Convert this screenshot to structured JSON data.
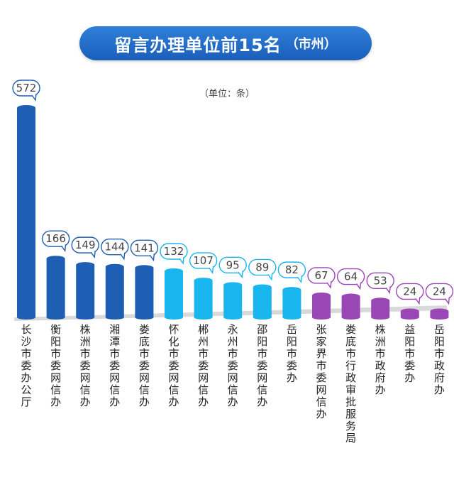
{
  "title": {
    "main": "留言办理单位前15名",
    "sub": "（市州）"
  },
  "unit_note": "（单位：条）",
  "colors": {
    "title_bg": "#1f68c4",
    "group1": "#1f5fb3",
    "group2": "#19b5ef",
    "group3": "#9a47b6",
    "floor": "#d9d9d9"
  },
  "chart_data": {
    "type": "bar",
    "title": "留言办理单位前15名（市州）",
    "ylabel": "（单位：条）",
    "categories": [
      "长沙市委办公厅",
      "衡阳市委网信办",
      "株洲市委网信办",
      "湘潭市委网信办",
      "娄底市委网信办",
      "怀化市委网信办",
      "郴州市委网信办",
      "永州市委网信办",
      "邵阳市委网信办",
      "岳阳市委办",
      "张家界市委网信办",
      "娄底市行政审批服务局",
      "株洲市政府办",
      "益阳市委办",
      "岳阳市政府办"
    ],
    "values": [
      572,
      166,
      149,
      144,
      141,
      132,
      107,
      95,
      89,
      82,
      67,
      64,
      53,
      24,
      24
    ],
    "color_groups": [
      1,
      1,
      1,
      1,
      1,
      2,
      2,
      2,
      2,
      2,
      3,
      3,
      3,
      3,
      3
    ],
    "ylim": [
      0,
      572
    ],
    "grid": false,
    "legend": "none"
  }
}
